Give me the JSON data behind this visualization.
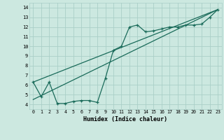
{
  "xlabel": "Humidex (Indice chaleur)",
  "bg_color": "#cce8e0",
  "grid_color": "#aacfc8",
  "line_color": "#1a6b5a",
  "xlim": [
    -0.5,
    23.5
  ],
  "ylim": [
    3.5,
    14.5
  ],
  "xticks": [
    0,
    1,
    2,
    3,
    4,
    5,
    6,
    7,
    8,
    9,
    10,
    11,
    12,
    13,
    14,
    15,
    16,
    17,
    18,
    19,
    20,
    21,
    22,
    23
  ],
  "yticks": [
    4,
    5,
    6,
    7,
    8,
    9,
    10,
    11,
    12,
    13,
    14
  ],
  "data_x": [
    0,
    1,
    2,
    3,
    4,
    5,
    6,
    7,
    8,
    9,
    10,
    11,
    12,
    13,
    14,
    15,
    16,
    17,
    18,
    19,
    20,
    21,
    22,
    23
  ],
  "data_y": [
    6.3,
    4.8,
    6.3,
    4.1,
    4.1,
    4.3,
    4.4,
    4.4,
    4.2,
    6.7,
    9.6,
    10.0,
    12.0,
    12.2,
    11.5,
    11.6,
    11.8,
    12.0,
    12.0,
    12.2,
    12.2,
    12.3,
    13.0,
    13.8
  ],
  "trend1_x": [
    0,
    23
  ],
  "trend1_y": [
    6.3,
    13.8
  ],
  "trend2_x": [
    0,
    23
  ],
  "trend2_y": [
    4.5,
    13.8
  ]
}
